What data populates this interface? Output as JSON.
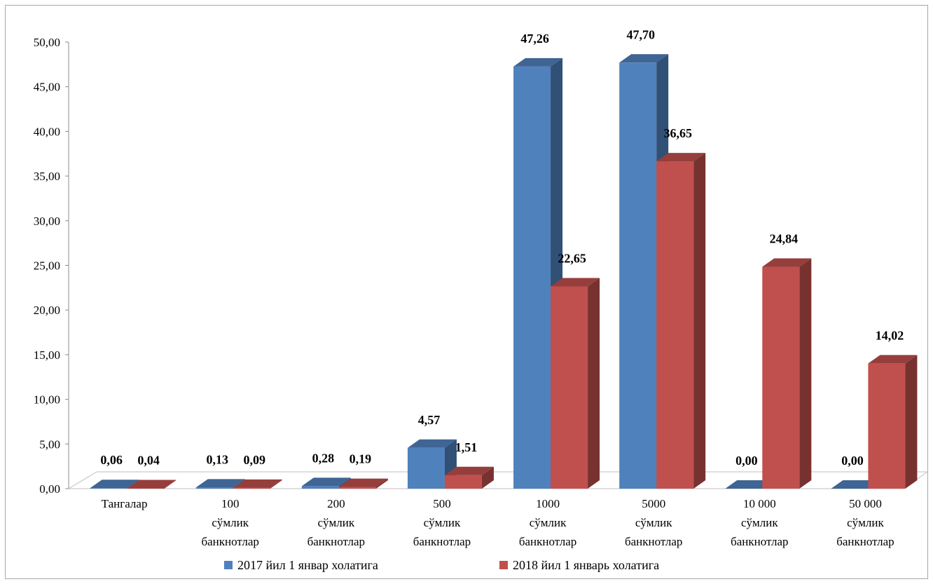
{
  "chart_data": {
    "type": "bar",
    "categories": [
      "Тангалар",
      "100 сўмлик банкнотлар",
      "200 сўмлик банкнотлар",
      "500 сўмлик банкнотлар",
      "1000 сўмлик банкнотлар",
      "5000 сўмлик банкнотлар",
      "10 000 сўмлик банкнотлар",
      "50 000 сўмлик банкнотлар"
    ],
    "category_lines": [
      [
        "Тангалар"
      ],
      [
        "100",
        "сўмлик",
        "банкнотлар"
      ],
      [
        "200",
        "сўмлик",
        "банкнотлар"
      ],
      [
        "500",
        "сўмлик",
        "банкнотлар"
      ],
      [
        "1000",
        "сўмлик",
        "банкнотлар"
      ],
      [
        "5000",
        "сўмлик",
        "банкнотлар"
      ],
      [
        "10 000",
        "сўмлик",
        "банкнотлар"
      ],
      [
        "50 000",
        "сўмлик",
        "банкнотлар"
      ]
    ],
    "series": [
      {
        "name": "2017 йил 1 январ холатига",
        "values": [
          0.06,
          0.13,
          0.28,
          4.57,
          47.26,
          47.7,
          0.0,
          0.0
        ],
        "labels": [
          "0,06",
          "0,13",
          "0,28",
          "4,57",
          "47,26",
          "47,70",
          "0,00",
          "0,00"
        ],
        "color": "#4f81bd"
      },
      {
        "name": "2018 йил 1 январь холатига",
        "values": [
          0.04,
          0.09,
          0.19,
          1.51,
          22.65,
          36.65,
          24.84,
          14.02
        ],
        "labels": [
          "0,04",
          "0,09",
          "0,19",
          "1,51",
          "22,65",
          "36,65",
          "24,84",
          "14,02"
        ],
        "color": "#c0504d"
      }
    ],
    "ylim": [
      0,
      50
    ],
    "yticks": [
      "0,00",
      "5,00",
      "10,00",
      "15,00",
      "20,00",
      "25,00",
      "30,00",
      "35,00",
      "40,00",
      "45,00",
      "50,00"
    ],
    "three_d": true,
    "grid": false,
    "legend_position": "bottom"
  }
}
